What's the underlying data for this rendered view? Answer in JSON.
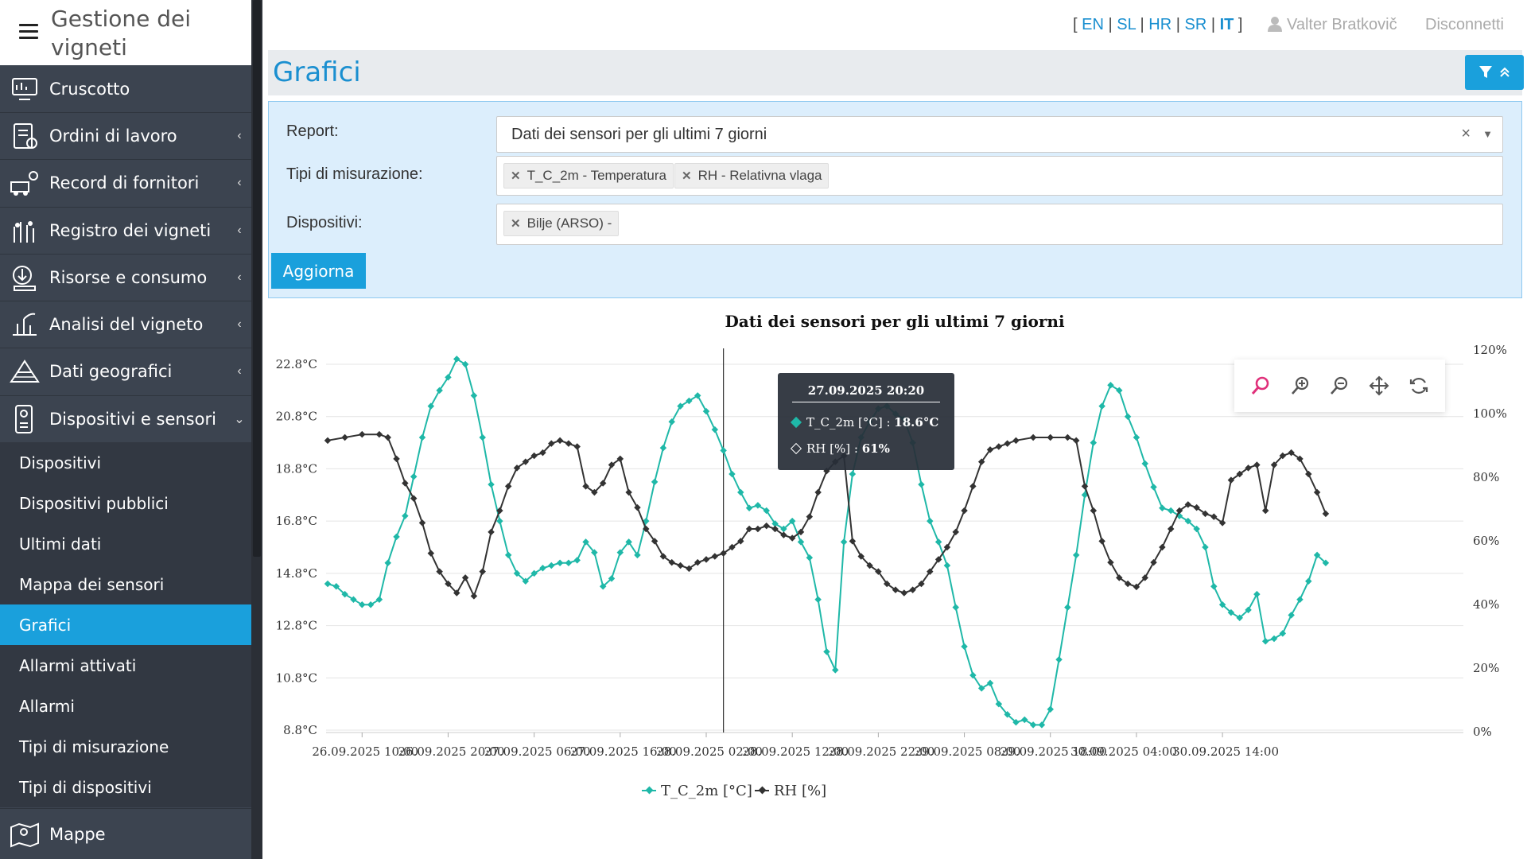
{
  "app": {
    "title": "Gestione dei vigneti"
  },
  "topbar": {
    "languages": [
      {
        "code": "EN",
        "active": false
      },
      {
        "code": "SL",
        "active": false
      },
      {
        "code": "HR",
        "active": false
      },
      {
        "code": "SR",
        "active": false
      },
      {
        "code": "IT",
        "active": true
      }
    ],
    "user_name": "Valter Bratkovič",
    "logout_label": "Disconnetti"
  },
  "sidebar": {
    "items": [
      {
        "label": "Cruscotto",
        "icon": "dashboard-icon",
        "chevron": ""
      },
      {
        "label": "Ordini di lavoro",
        "icon": "work-orders-icon",
        "chevron": "‹"
      },
      {
        "label": "Record di fornitori",
        "icon": "suppliers-icon",
        "chevron": "‹"
      },
      {
        "label": "Registro dei vigneti",
        "icon": "vineyard-registry-icon",
        "chevron": "‹"
      },
      {
        "label": "Risorse e consumo",
        "icon": "resources-icon",
        "chevron": "‹"
      },
      {
        "label": "Analisi del vigneto",
        "icon": "vineyard-analysis-icon",
        "chevron": "‹"
      },
      {
        "label": "Dati geografici",
        "icon": "geo-data-icon",
        "chevron": "‹"
      },
      {
        "label": "Dispositivi e sensori",
        "icon": "devices-sensors-icon",
        "chevron": "⌄"
      }
    ],
    "subitems": [
      {
        "label": "Dispositivi",
        "active": false
      },
      {
        "label": "Dispositivi pubblici",
        "active": false
      },
      {
        "label": "Ultimi dati",
        "active": false
      },
      {
        "label": "Mappa dei sensori",
        "active": false
      },
      {
        "label": "Grafici",
        "active": true
      },
      {
        "label": "Allarmi attivati",
        "active": false
      },
      {
        "label": "Allarmi",
        "active": false
      },
      {
        "label": "Tipi di misurazione",
        "active": false
      },
      {
        "label": "Tipi di dispositivi",
        "active": false
      }
    ],
    "bottom_item": {
      "label": "Mappe",
      "icon": "maps-icon"
    }
  },
  "page": {
    "title": "Grafici"
  },
  "filters": {
    "report_label": "Report:",
    "report_value": "Dati dei sensori per gli ultimi 7 giorni",
    "types_label": "Tipi di misurazione:",
    "types": [
      "T_C_2m - Temperatura",
      "RH - Relativna vlaga"
    ],
    "devices_label": "Dispositivi:",
    "devices": [
      "Bilje (ARSO) -"
    ],
    "update_label": "Aggiorna"
  },
  "tooltip": {
    "time": "27.09.2025 20:20",
    "rows": [
      {
        "series": "T_C_2m [°C]",
        "value": "18.6°C"
      },
      {
        "series": "RH [%]",
        "value": "61%"
      }
    ]
  },
  "chart_data": {
    "type": "line",
    "title": "Dati dei sensori per gli ultimi 7 giorni",
    "x_ticks": [
      "26.09.2025 10:00",
      "26.09.2025 20:00",
      "27.09.2025 06:00",
      "27.09.2025 16:00",
      "28.09.2025 02:00",
      "28.09.2025 12:00",
      "28.09.2025 22:00",
      "29.09.2025 08:00",
      "29.09.2025 18:00",
      "30.09.2025 04:00",
      "30.09.2025 14:00"
    ],
    "y_left": {
      "min": 8.8,
      "max": 22.8,
      "ticks": [
        "22.8°C",
        "20.8°C",
        "18.8°C",
        "16.8°C",
        "14.8°C",
        "12.8°C",
        "10.8°C",
        "8.8°C"
      ]
    },
    "y_right": {
      "min": 0,
      "max": 120,
      "ticks": [
        "120%",
        "100%",
        "80%",
        "60%",
        "40%",
        "20%",
        "0%"
      ]
    },
    "x_range_hours": [
      0,
      132
    ],
    "series": [
      {
        "name": "T_C_2m [°C]",
        "axis": "left",
        "color": "#1fb8a8",
        "marker": "diamond",
        "points": [
          [
            0,
            14.4
          ],
          [
            1,
            14.3
          ],
          [
            2,
            14.0
          ],
          [
            3,
            13.8
          ],
          [
            4,
            13.6
          ],
          [
            5,
            13.6
          ],
          [
            6,
            13.8
          ],
          [
            7,
            15.2
          ],
          [
            8,
            16.2
          ],
          [
            9,
            17.0
          ],
          [
            10,
            18.5
          ],
          [
            11,
            20.0
          ],
          [
            12,
            21.2
          ],
          [
            13,
            21.8
          ],
          [
            14,
            22.3
          ],
          [
            15,
            23.0
          ],
          [
            16,
            22.8
          ],
          [
            17,
            21.6
          ],
          [
            18,
            20.0
          ],
          [
            19,
            18.2
          ],
          [
            20,
            16.8
          ],
          [
            21,
            15.5
          ],
          [
            22,
            14.8
          ],
          [
            23,
            14.5
          ],
          [
            24,
            14.8
          ],
          [
            25,
            15.0
          ],
          [
            26,
            15.1
          ],
          [
            27,
            15.2
          ],
          [
            28,
            15.2
          ],
          [
            29,
            15.3
          ],
          [
            30,
            16.0
          ],
          [
            31,
            15.6
          ],
          [
            32,
            14.3
          ],
          [
            33,
            14.6
          ],
          [
            34,
            15.6
          ],
          [
            35,
            16.0
          ],
          [
            36,
            15.5
          ],
          [
            37,
            16.8
          ],
          [
            38,
            18.3
          ],
          [
            39,
            19.6
          ],
          [
            40,
            20.6
          ],
          [
            41,
            21.2
          ],
          [
            42,
            21.4
          ],
          [
            43,
            21.6
          ],
          [
            44,
            21.0
          ],
          [
            45,
            20.3
          ],
          [
            46,
            19.5
          ],
          [
            47,
            18.6
          ],
          [
            48,
            17.9
          ],
          [
            49,
            17.3
          ],
          [
            50,
            17.4
          ],
          [
            51,
            17.2
          ],
          [
            52,
            16.7
          ],
          [
            53,
            16.5
          ],
          [
            54,
            16.8
          ],
          [
            55,
            16.0
          ],
          [
            56,
            15.4
          ],
          [
            57,
            13.8
          ],
          [
            58,
            11.8
          ],
          [
            59,
            11.1
          ],
          [
            60,
            16.0
          ],
          [
            61,
            18.6
          ],
          [
            62,
            20.0
          ],
          [
            63,
            20.6
          ],
          [
            64,
            21.1
          ],
          [
            65,
            21.2
          ],
          [
            66,
            20.9
          ],
          [
            67,
            20.7
          ],
          [
            68,
            19.8
          ],
          [
            69,
            18.2
          ],
          [
            70,
            16.8
          ],
          [
            71,
            16.0
          ],
          [
            72,
            15.1
          ],
          [
            73,
            13.5
          ],
          [
            74,
            12.0
          ],
          [
            75,
            10.9
          ],
          [
            76,
            10.4
          ],
          [
            77,
            10.6
          ],
          [
            78,
            9.8
          ],
          [
            79,
            9.4
          ],
          [
            80,
            9.1
          ],
          [
            81,
            9.2
          ],
          [
            82,
            9.0
          ],
          [
            83,
            9.0
          ],
          [
            84,
            9.6
          ],
          [
            85,
            11.5
          ],
          [
            86,
            13.5
          ],
          [
            87,
            15.5
          ],
          [
            88,
            17.8
          ],
          [
            89,
            19.8
          ],
          [
            90,
            21.2
          ],
          [
            91,
            22.0
          ],
          [
            92,
            21.8
          ],
          [
            93,
            20.8
          ],
          [
            94,
            20.0
          ],
          [
            95,
            19.0
          ],
          [
            96,
            18.1
          ],
          [
            97,
            17.3
          ],
          [
            98,
            17.2
          ],
          [
            99,
            17.0
          ],
          [
            100,
            16.8
          ],
          [
            101,
            16.5
          ],
          [
            102,
            15.8
          ],
          [
            103,
            14.3
          ],
          [
            104,
            13.6
          ],
          [
            105,
            13.3
          ],
          [
            106,
            13.1
          ],
          [
            107,
            13.4
          ],
          [
            108,
            14.0
          ],
          [
            109,
            12.2
          ],
          [
            110,
            12.3
          ],
          [
            111,
            12.5
          ],
          [
            112,
            13.2
          ],
          [
            113,
            13.8
          ],
          [
            114,
            14.5
          ],
          [
            115,
            15.5
          ],
          [
            116,
            15.2
          ]
        ]
      },
      {
        "name": "RH [%]",
        "axis": "right",
        "color": "#333333",
        "marker": "diamond",
        "points": [
          [
            0,
            95
          ],
          [
            2,
            96
          ],
          [
            4,
            97
          ],
          [
            6,
            97
          ],
          [
            7,
            96
          ],
          [
            8,
            89
          ],
          [
            9,
            81
          ],
          [
            10,
            76
          ],
          [
            11,
            68
          ],
          [
            12,
            58
          ],
          [
            13,
            52
          ],
          [
            14,
            48
          ],
          [
            15,
            45
          ],
          [
            16,
            50
          ],
          [
            17,
            44
          ],
          [
            18,
            52
          ],
          [
            19,
            65
          ],
          [
            20,
            72
          ],
          [
            21,
            80
          ],
          [
            22,
            86
          ],
          [
            23,
            88
          ],
          [
            24,
            90
          ],
          [
            25,
            91
          ],
          [
            26,
            94
          ],
          [
            27,
            95
          ],
          [
            28,
            94
          ],
          [
            29,
            93
          ],
          [
            30,
            80
          ],
          [
            31,
            78
          ],
          [
            32,
            81
          ],
          [
            33,
            87
          ],
          [
            34,
            89
          ],
          [
            35,
            78
          ],
          [
            36,
            73
          ],
          [
            37,
            66
          ],
          [
            38,
            62
          ],
          [
            39,
            57
          ],
          [
            40,
            55
          ],
          [
            41,
            54
          ],
          [
            42,
            53
          ],
          [
            43,
            55
          ],
          [
            44,
            56
          ],
          [
            45,
            57
          ],
          [
            46,
            58
          ],
          [
            47,
            60
          ],
          [
            48,
            62
          ],
          [
            49,
            66
          ],
          [
            50,
            66
          ],
          [
            51,
            67
          ],
          [
            52,
            66
          ],
          [
            53,
            64
          ],
          [
            54,
            63
          ],
          [
            55,
            65
          ],
          [
            56,
            70
          ],
          [
            57,
            78
          ],
          [
            58,
            85
          ],
          [
            59,
            88
          ],
          [
            60,
            90
          ],
          [
            61,
            62
          ],
          [
            62,
            57
          ],
          [
            63,
            54
          ],
          [
            64,
            52
          ],
          [
            65,
            48
          ],
          [
            66,
            46
          ],
          [
            67,
            45
          ],
          [
            68,
            46
          ],
          [
            69,
            48
          ],
          [
            70,
            52
          ],
          [
            71,
            56
          ],
          [
            72,
            60
          ],
          [
            73,
            65
          ],
          [
            74,
            72
          ],
          [
            75,
            80
          ],
          [
            76,
            88
          ],
          [
            77,
            92
          ],
          [
            78,
            93
          ],
          [
            79,
            94
          ],
          [
            80,
            95
          ],
          [
            82,
            96
          ],
          [
            84,
            96
          ],
          [
            86,
            96
          ],
          [
            87,
            95
          ],
          [
            88,
            80
          ],
          [
            89,
            72
          ],
          [
            90,
            62
          ],
          [
            91,
            55
          ],
          [
            92,
            50
          ],
          [
            93,
            48
          ],
          [
            94,
            47
          ],
          [
            95,
            50
          ],
          [
            96,
            55
          ],
          [
            97,
            60
          ],
          [
            98,
            66
          ],
          [
            99,
            72
          ],
          [
            100,
            74
          ],
          [
            101,
            73
          ],
          [
            102,
            71
          ],
          [
            103,
            70
          ],
          [
            104,
            68
          ],
          [
            105,
            82
          ],
          [
            106,
            84
          ],
          [
            107,
            86
          ],
          [
            108,
            87
          ],
          [
            109,
            72
          ],
          [
            110,
            87
          ],
          [
            111,
            90
          ],
          [
            112,
            91
          ],
          [
            113,
            89
          ],
          [
            114,
            84
          ],
          [
            115,
            78
          ],
          [
            116,
            71
          ]
        ]
      }
    ],
    "legend_position": "bottom",
    "grid": true,
    "crosshair_hour": 46
  }
}
